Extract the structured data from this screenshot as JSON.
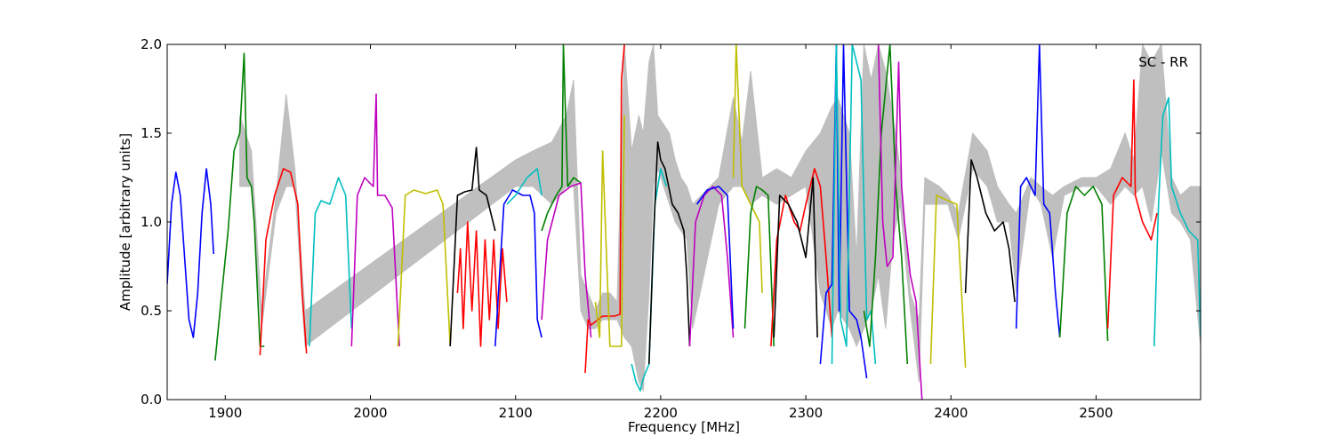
{
  "chart_data": {
    "type": "line",
    "title": "",
    "xlabel": "Frequency [MHz]",
    "ylabel": "Amplitude [arbitrary units]",
    "xlim": [
      1860,
      2572
    ],
    "ylim": [
      0.0,
      2.0
    ],
    "xticks": [
      1900,
      2000,
      2100,
      2200,
      2300,
      2400,
      2500
    ],
    "xtick_labels": [
      "1900",
      "2000",
      "2100",
      "2200",
      "2300",
      "2400",
      "2500"
    ],
    "yticks": [
      0.0,
      0.5,
      1.0,
      1.5,
      2.0
    ],
    "ytick_labels": [
      "0.0",
      "0.5",
      "1.0",
      "1.5",
      "2.0"
    ],
    "grid": false,
    "annotation": "SC - RR",
    "annotation_position": "top-right",
    "background_series": {
      "color": "#bfbfbf",
      "x": [
        1910,
        1918,
        1925,
        1935,
        1942,
        1948,
        1955,
        2100,
        2112,
        2125,
        2135,
        2140,
        2145,
        2150,
        2155,
        2160,
        2165,
        2170,
        2175,
        2180,
        2185,
        2188,
        2192,
        2195,
        2198,
        2202,
        2206,
        2210,
        2214,
        2218,
        2222,
        2240,
        2250,
        2256,
        2262,
        2270,
        2280,
        2290,
        2300,
        2310,
        2318,
        2322,
        2330,
        2335,
        2340,
        2345,
        2350,
        2355,
        2360,
        2365,
        2372,
        2378,
        2382,
        2392,
        2398,
        2405,
        2415,
        2425,
        2432,
        2440,
        2445,
        2455,
        2462,
        2470,
        2478,
        2490,
        2500,
        2510,
        2520,
        2526,
        2532,
        2538,
        2545,
        2552,
        2558,
        2565,
        2572
      ],
      "upper": [
        1.6,
        1.4,
        0.5,
        1.15,
        1.72,
        1.3,
        0.5,
        1.35,
        1.4,
        1.45,
        1.6,
        1.8,
        0.7,
        0.6,
        0.5,
        0.6,
        0.6,
        0.55,
        2.0,
        1.4,
        1.6,
        1.5,
        1.9,
        2.0,
        1.6,
        1.55,
        1.5,
        1.35,
        1.25,
        1.2,
        1.1,
        1.25,
        1.7,
        1.45,
        1.85,
        1.25,
        1.3,
        1.25,
        1.4,
        1.5,
        1.65,
        1.7,
        1.5,
        0.8,
        2.0,
        1.8,
        2.0,
        1.85,
        1.6,
        1.3,
        0.6,
        0.45,
        1.25,
        1.2,
        1.15,
        1.05,
        1.5,
        1.4,
        1.2,
        1.1,
        1.05,
        1.25,
        1.2,
        1.15,
        1.2,
        1.25,
        1.25,
        1.3,
        1.5,
        1.35,
        2.0,
        1.9,
        2.0,
        1.25,
        1.15,
        1.2,
        1.2
      ],
      "lower": [
        1.2,
        1.2,
        0.4,
        1.05,
        1.2,
        1.2,
        0.3,
        1.2,
        1.2,
        1.1,
        1.2,
        1.2,
        0.5,
        0.4,
        0.4,
        0.45,
        0.45,
        0.45,
        0.35,
        0.3,
        0.1,
        0.05,
        0.6,
        1.2,
        1.3,
        1.2,
        1.1,
        1.0,
        0.95,
        0.9,
        0.4,
        1.1,
        1.2,
        1.2,
        1.1,
        1.15,
        1.1,
        1.15,
        1.2,
        0.6,
        0.4,
        0.5,
        0.4,
        0.3,
        0.4,
        0.5,
        0.7,
        0.4,
        0.9,
        1.1,
        0.5,
        0.1,
        1.1,
        1.1,
        1.1,
        0.9,
        1.3,
        1.2,
        1.0,
        1.0,
        0.6,
        1.2,
        1.1,
        0.8,
        1.15,
        1.2,
        1.2,
        1.1,
        1.2,
        1.15,
        1.2,
        1.0,
        1.4,
        1.05,
        1.0,
        0.9,
        0.3
      ]
    },
    "series": [
      {
        "color": "#0000ff",
        "x": [
          1860,
          1863,
          1866,
          1869,
          1872,
          1875,
          1878,
          1881,
          1884,
          1887,
          1890,
          1892
        ],
        "y": [
          0.65,
          1.1,
          1.28,
          1.15,
          0.8,
          0.45,
          0.35,
          0.6,
          1.05,
          1.3,
          1.1,
          0.82
        ]
      },
      {
        "color": "#008000",
        "x": [
          1893,
          1897,
          1902,
          1906,
          1910,
          1913,
          1915,
          1918,
          1920,
          1924,
          1927
        ],
        "y": [
          0.22,
          0.55,
          0.95,
          1.4,
          1.5,
          1.95,
          1.25,
          1.2,
          1.0,
          0.3,
          0.3
        ]
      },
      {
        "color": "#ff0000",
        "x": [
          1924,
          1928,
          1934,
          1940,
          1945,
          1950,
          1953,
          1956
        ],
        "y": [
          0.25,
          0.9,
          1.15,
          1.3,
          1.28,
          1.1,
          0.6,
          0.26
        ]
      },
      {
        "color": "#00bfbf",
        "x": [
          1958,
          1962,
          1966,
          1972,
          1978,
          1983,
          1987
        ],
        "y": [
          0.3,
          1.05,
          1.12,
          1.1,
          1.25,
          1.15,
          0.4
        ]
      },
      {
        "color": "#bf00bf",
        "x": [
          1987,
          1991,
          1996,
          2002,
          2004,
          2005,
          2010,
          2015,
          2020
        ],
        "y": [
          0.3,
          1.15,
          1.25,
          1.2,
          1.72,
          1.15,
          1.15,
          1.08,
          0.3
        ]
      },
      {
        "color": "#bfbf00",
        "x": [
          2019,
          2024,
          2030,
          2038,
          2046,
          2050,
          2055
        ],
        "y": [
          0.3,
          1.15,
          1.18,
          1.16,
          1.18,
          1.1,
          0.3
        ]
      },
      {
        "color": "#000000",
        "x": [
          2055,
          2060,
          2065,
          2070,
          2073,
          2075,
          2080,
          2086
        ],
        "y": [
          0.3,
          1.15,
          1.17,
          1.18,
          1.42,
          1.18,
          1.15,
          0.95
        ]
      },
      {
        "color": "#ff0000",
        "x": [
          2060,
          2062,
          2064,
          2067,
          2070,
          2073,
          2076,
          2079,
          2082,
          2085,
          2088,
          2091,
          2094
        ],
        "y": [
          0.6,
          0.85,
          0.4,
          1.0,
          0.5,
          0.95,
          0.3,
          0.9,
          0.45,
          0.9,
          0.4,
          0.85,
          0.55
        ]
      },
      {
        "color": "#0000ff",
        "x": [
          2086,
          2092,
          2098,
          2105,
          2110,
          2113,
          2115,
          2118
        ],
        "y": [
          0.3,
          1.1,
          1.18,
          1.15,
          1.15,
          1.05,
          0.45,
          0.35
        ]
      },
      {
        "color": "#00bfbf",
        "x": [
          2094,
          2100,
          2108,
          2115,
          2118
        ],
        "y": [
          1.1,
          1.15,
          1.25,
          1.3,
          1.15
        ]
      },
      {
        "color": "#008000",
        "x": [
          2118,
          2122,
          2128,
          2132,
          2133,
          2136,
          2140,
          2145
        ],
        "y": [
          0.95,
          1.05,
          1.15,
          1.2,
          2.0,
          1.2,
          1.25,
          1.22
        ]
      },
      {
        "color": "#bf00bf",
        "x": [
          2118,
          2122,
          2130,
          2138,
          2145,
          2148,
          2152
        ],
        "y": [
          0.45,
          0.9,
          1.15,
          1.2,
          1.22,
          0.7,
          0.35
        ]
      },
      {
        "color": "#ff0000",
        "x": [
          2148,
          2150,
          2152,
          2160,
          2168,
          2172,
          2173,
          2175
        ],
        "y": [
          0.15,
          0.45,
          0.42,
          0.47,
          0.47,
          0.48,
          1.8,
          2.0
        ]
      },
      {
        "color": "#bfbf00",
        "x": [
          2155,
          2158,
          2160,
          2165,
          2170,
          2173,
          2175
        ],
        "y": [
          0.55,
          0.35,
          1.4,
          0.3,
          0.3,
          0.3,
          1.6
        ]
      },
      {
        "color": "#00bfbf",
        "x": [
          2180,
          2183,
          2186,
          2188,
          2192,
          2196,
          2200,
          2204
        ],
        "y": [
          0.2,
          0.1,
          0.05,
          0.12,
          0.2,
          1.1,
          1.3,
          1.2
        ]
      },
      {
        "color": "#000000",
        "x": [
          2192,
          2195,
          2198,
          2200,
          2203,
          2208,
          2212,
          2216,
          2218,
          2220
        ],
        "y": [
          0.2,
          0.9,
          1.45,
          1.35,
          1.3,
          1.1,
          1.05,
          0.95,
          0.7,
          0.3
        ]
      },
      {
        "color": "#bf00bf",
        "x": [
          2220,
          2224,
          2230,
          2236,
          2242,
          2246,
          2250
        ],
        "y": [
          0.3,
          1.0,
          1.15,
          1.2,
          1.15,
          0.8,
          0.35
        ]
      },
      {
        "color": "#0000ff",
        "x": [
          2225,
          2232,
          2240,
          2246,
          2250
        ],
        "y": [
          1.1,
          1.18,
          1.2,
          1.15,
          0.4
        ]
      },
      {
        "color": "#bfbf00",
        "x": [
          2250,
          2252,
          2256,
          2262,
          2268,
          2270
        ],
        "y": [
          1.25,
          2.0,
          1.2,
          1.1,
          1.0,
          0.6
        ]
      },
      {
        "color": "#008000",
        "x": [
          2258,
          2262,
          2266,
          2270,
          2274,
          2278
        ],
        "y": [
          0.4,
          1.05,
          1.2,
          1.18,
          1.15,
          0.3
        ]
      },
      {
        "color": "#ff0000",
        "x": [
          2276,
          2280,
          2286,
          2292,
          2296,
          2300,
          2306,
          2310,
          2314,
          2318
        ],
        "y": [
          0.3,
          0.9,
          1.15,
          1.0,
          0.95,
          1.1,
          1.3,
          1.2,
          0.8,
          0.35
        ]
      },
      {
        "color": "#000000",
        "x": [
          2278,
          2282,
          2288,
          2294,
          2300,
          2305,
          2308
        ],
        "y": [
          0.35,
          1.15,
          1.1,
          1.0,
          0.8,
          1.25,
          0.35
        ]
      },
      {
        "color": "#0000ff",
        "x": [
          2310,
          2314,
          2318,
          2321,
          2323,
          2326,
          2330,
          2335,
          2338,
          2342
        ],
        "y": [
          0.2,
          0.6,
          0.65,
          2.0,
          0.5,
          2.0,
          0.5,
          0.45,
          0.35,
          0.12
        ]
      },
      {
        "color": "#00bfbf",
        "x": [
          2318,
          2321,
          2324,
          2328,
          2332,
          2338,
          2342,
          2345,
          2348
        ],
        "y": [
          0.2,
          2.0,
          0.45,
          0.3,
          2.0,
          1.8,
          0.45,
          0.5,
          0.2
        ]
      },
      {
        "color": "#008000",
        "x": [
          2340,
          2344,
          2348,
          2352,
          2358,
          2362,
          2366,
          2370
        ],
        "y": [
          0.5,
          0.3,
          0.8,
          1.5,
          2.0,
          1.2,
          0.8,
          0.2
        ]
      },
      {
        "color": "#bf00bf",
        "x": [
          2350,
          2353,
          2356,
          2360,
          2364,
          2366,
          2368,
          2372,
          2376,
          2380
        ],
        "y": [
          2.0,
          1.0,
          0.75,
          0.8,
          1.9,
          1.2,
          1.0,
          0.7,
          0.55,
          0.0
        ]
      },
      {
        "color": "#bfbf00",
        "x": [
          2386,
          2390,
          2398,
          2404,
          2408,
          2410
        ],
        "y": [
          0.2,
          1.15,
          1.12,
          1.1,
          0.5,
          0.18
        ]
      },
      {
        "color": "#000000",
        "x": [
          2410,
          2414,
          2418,
          2424,
          2430,
          2436,
          2440,
          2444
        ],
        "y": [
          0.6,
          1.35,
          1.25,
          1.05,
          0.95,
          1.0,
          0.85,
          0.55
        ]
      },
      {
        "color": "#0000ff",
        "x": [
          2445,
          2448,
          2452,
          2458,
          2461,
          2464,
          2468,
          2472,
          2475
        ],
        "y": [
          0.4,
          1.2,
          1.25,
          1.15,
          2.0,
          1.1,
          1.05,
          0.6,
          0.35
        ]
      },
      {
        "color": "#008000",
        "x": [
          2475,
          2480,
          2486,
          2492,
          2498,
          2504,
          2508
        ],
        "y": [
          0.35,
          1.05,
          1.2,
          1.15,
          1.2,
          1.1,
          0.33
        ]
      },
      {
        "color": "#ff0000",
        "x": [
          2508,
          2512,
          2518,
          2524,
          2526,
          2527,
          2532,
          2538,
          2542
        ],
        "y": [
          0.4,
          1.15,
          1.25,
          1.2,
          1.8,
          1.15,
          1.0,
          0.9,
          1.05
        ]
      },
      {
        "color": "#00bfbf",
        "x": [
          2540,
          2543,
          2546,
          2550,
          2552,
          2558,
          2564,
          2570,
          2572
        ],
        "y": [
          0.3,
          1.1,
          1.6,
          1.7,
          1.2,
          1.05,
          0.95,
          0.9,
          0.35
        ]
      }
    ]
  }
}
